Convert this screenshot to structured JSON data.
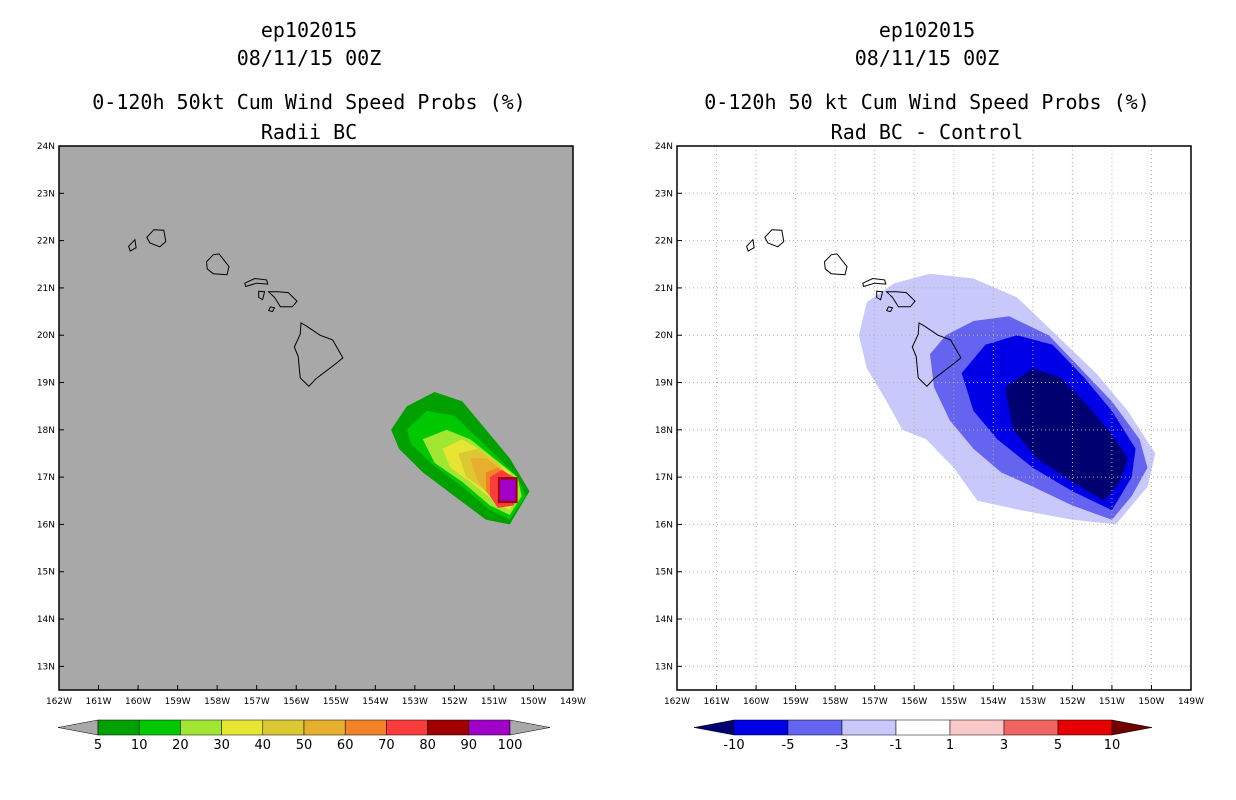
{
  "panels": [
    {
      "id": "left",
      "title_line1": "ep102015",
      "title_line2": "08/11/15 00Z",
      "title_line3": "0-120h 50kt Cum Wind Speed Probs (%)",
      "title_line4": "Radii BC",
      "background": "#a8a8a8",
      "grid": false
    },
    {
      "id": "right",
      "title_line1": "ep102015",
      "title_line2": "08/11/15 00Z",
      "title_line3": "0-120h 50 kt Cum Wind Speed Probs (%)",
      "title_line4": "Rad BC - Control",
      "background": "#ffffff",
      "grid": true
    }
  ],
  "chart_data": [
    {
      "type": "contour-map",
      "title": "0-120h 50kt Cum Wind Speed Probs (%) — Radii BC",
      "storm": "ep102015",
      "valid": "08/11/15 00Z",
      "lon_range": [
        -162,
        -149
      ],
      "lat_range": [
        12.5,
        24
      ],
      "x_ticks": [
        "162W",
        "161W",
        "160W",
        "159W",
        "158W",
        "157W",
        "156W",
        "155W",
        "154W",
        "153W",
        "152W",
        "151W",
        "150W",
        "149W"
      ],
      "y_ticks": [
        "13N",
        "14N",
        "15N",
        "16N",
        "17N",
        "18N",
        "19N",
        "20N",
        "21N",
        "22N",
        "23N",
        "24N"
      ],
      "colorbar": {
        "labels": [
          "5",
          "10",
          "20",
          "30",
          "40",
          "50",
          "60",
          "70",
          "80",
          "90",
          "100"
        ],
        "colors": [
          "#00a000",
          "#00c800",
          "#a0e632",
          "#e6e632",
          "#dcc832",
          "#e6af2d",
          "#f08228",
          "#fa3c3c",
          "#a00000",
          "#a000c8"
        ],
        "under_color": "#a8a8a8",
        "over_color": "#a8a8a8"
      },
      "contours": [
        {
          "level": 5,
          "color": "#00a000",
          "polygon": [
            [
              -153.6,
              18.0
            ],
            [
              -153.2,
              18.5
            ],
            [
              -152.5,
              18.8
            ],
            [
              -151.8,
              18.6
            ],
            [
              -151.2,
              18.0
            ],
            [
              -150.6,
              17.4
            ],
            [
              -150.1,
              16.7
            ],
            [
              -150.6,
              16.0
            ],
            [
              -151.2,
              16.1
            ],
            [
              -152.0,
              16.6
            ],
            [
              -152.8,
              17.1
            ],
            [
              -153.4,
              17.6
            ]
          ]
        },
        {
          "level": 10,
          "color": "#00c800",
          "polygon": [
            [
              -153.2,
              18.0
            ],
            [
              -152.7,
              18.4
            ],
            [
              -152.0,
              18.3
            ],
            [
              -151.5,
              17.9
            ],
            [
              -151.0,
              17.5
            ],
            [
              -150.4,
              17.0
            ],
            [
              -150.2,
              16.6
            ],
            [
              -150.6,
              16.1
            ],
            [
              -151.1,
              16.3
            ],
            [
              -151.8,
              16.8
            ],
            [
              -152.6,
              17.3
            ],
            [
              -153.1,
              17.7
            ]
          ]
        },
        {
          "level": 20,
          "color": "#a0e632",
          "polygon": [
            [
              -152.8,
              17.8
            ],
            [
              -152.2,
              18.0
            ],
            [
              -151.6,
              17.8
            ],
            [
              -151.0,
              17.4
            ],
            [
              -150.4,
              17.0
            ],
            [
              -150.3,
              16.6
            ],
            [
              -150.6,
              16.2
            ],
            [
              -151.1,
              16.4
            ],
            [
              -151.8,
              16.9
            ],
            [
              -152.5,
              17.3
            ]
          ]
        },
        {
          "level": 30,
          "color": "#e6e632",
          "polygon": [
            [
              -152.3,
              17.6
            ],
            [
              -151.8,
              17.8
            ],
            [
              -151.2,
              17.5
            ],
            [
              -150.6,
              17.1
            ],
            [
              -150.4,
              16.7
            ],
            [
              -150.6,
              16.3
            ],
            [
              -151.0,
              16.5
            ],
            [
              -151.6,
              16.9
            ],
            [
              -152.1,
              17.2
            ]
          ]
        },
        {
          "level": 40,
          "color": "#dcc832",
          "polygon": [
            [
              -151.9,
              17.5
            ],
            [
              -151.4,
              17.6
            ],
            [
              -150.9,
              17.3
            ],
            [
              -150.5,
              16.9
            ],
            [
              -150.5,
              16.5
            ],
            [
              -150.8,
              16.4
            ],
            [
              -151.2,
              16.7
            ],
            [
              -151.7,
              17.0
            ]
          ]
        },
        {
          "level": 50,
          "color": "#e6af2d",
          "polygon": [
            [
              -151.6,
              17.4
            ],
            [
              -151.2,
              17.4
            ],
            [
              -150.7,
              17.1
            ],
            [
              -150.5,
              16.7
            ],
            [
              -150.7,
              16.4
            ],
            [
              -151.0,
              16.5
            ],
            [
              -151.4,
              16.9
            ]
          ]
        },
        {
          "level": 60,
          "color": "#f08228",
          "polygon": [
            [
              -151.2,
              17.1
            ],
            [
              -150.9,
              17.2
            ],
            [
              -150.6,
              17.0
            ],
            [
              -150.5,
              16.7
            ],
            [
              -150.6,
              16.4
            ],
            [
              -150.9,
              16.4
            ],
            [
              -151.2,
              16.7
            ]
          ]
        },
        {
          "level": 70,
          "color": "#fa3c3c",
          "polygon": [
            [
              -151.1,
              17.0
            ],
            [
              -150.8,
              17.15
            ],
            [
              -150.5,
              17.0
            ],
            [
              -150.4,
              16.7
            ],
            [
              -150.5,
              16.4
            ],
            [
              -150.9,
              16.35
            ],
            [
              -151.1,
              16.6
            ]
          ]
        },
        {
          "level": 80,
          "color": "#a00000",
          "polygon": [
            [
              -150.9,
              17.0
            ],
            [
              -150.4,
              17.0
            ],
            [
              -150.4,
              16.45
            ],
            [
              -150.9,
              16.45
            ]
          ]
        },
        {
          "level": 90,
          "color": "#a000c8",
          "polygon": [
            [
              -150.85,
              16.95
            ],
            [
              -150.45,
              16.95
            ],
            [
              -150.45,
              16.5
            ],
            [
              -150.85,
              16.5
            ]
          ]
        }
      ]
    },
    {
      "type": "contour-map",
      "title": "0-120h 50 kt Cum Wind Speed Probs (%) — Rad BC - Control",
      "storm": "ep102015",
      "valid": "08/11/15 00Z",
      "lon_range": [
        -162,
        -149
      ],
      "lat_range": [
        12.5,
        24
      ],
      "x_ticks": [
        "162W",
        "161W",
        "160W",
        "159W",
        "158W",
        "157W",
        "156W",
        "155W",
        "154W",
        "153W",
        "152W",
        "151W",
        "150W",
        "149W"
      ],
      "y_ticks": [
        "13N",
        "14N",
        "15N",
        "16N",
        "17N",
        "18N",
        "19N",
        "20N",
        "21N",
        "22N",
        "23N",
        "24N"
      ],
      "colorbar": {
        "labels": [
          "-10",
          "-5",
          "-3",
          "-1",
          "1",
          "3",
          "5",
          "10"
        ],
        "colors": [
          "#0000e6",
          "#6464f0",
          "#c8c8fa",
          "#ffffff",
          "#fac8c8",
          "#f06464",
          "#e60000"
        ],
        "under_color": "#000070",
        "over_color": "#700000"
      },
      "contours": [
        {
          "level": -1,
          "color": "#c8c8fa",
          "polygon": [
            [
              -157.4,
              20.0
            ],
            [
              -157.2,
              20.7
            ],
            [
              -156.5,
              21.1
            ],
            [
              -155.6,
              21.3
            ],
            [
              -154.5,
              21.2
            ],
            [
              -153.4,
              20.8
            ],
            [
              -152.4,
              20.0
            ],
            [
              -151.4,
              19.2
            ],
            [
              -150.6,
              18.4
            ],
            [
              -149.9,
              17.5
            ],
            [
              -150.1,
              16.8
            ],
            [
              -150.9,
              16.0
            ],
            [
              -152.0,
              16.1
            ],
            [
              -153.3,
              16.3
            ],
            [
              -154.4,
              16.5
            ],
            [
              -155.0,
              17.2
            ],
            [
              -155.7,
              17.8
            ],
            [
              -156.3,
              18.0
            ],
            [
              -156.7,
              18.6
            ],
            [
              -157.2,
              19.3
            ]
          ]
        },
        {
          "level": -3,
          "color": "#6464f0",
          "polygon": [
            [
              -155.6,
              19.6
            ],
            [
              -155.2,
              20.0
            ],
            [
              -154.5,
              20.3
            ],
            [
              -153.6,
              20.4
            ],
            [
              -152.6,
              20.0
            ],
            [
              -151.8,
              19.3
            ],
            [
              -151.0,
              18.6
            ],
            [
              -150.3,
              17.8
            ],
            [
              -150.1,
              17.2
            ],
            [
              -150.5,
              16.6
            ],
            [
              -151.0,
              16.1
            ],
            [
              -152.0,
              16.4
            ],
            [
              -153.0,
              16.8
            ],
            [
              -153.8,
              17.1
            ],
            [
              -154.5,
              17.6
            ],
            [
              -155.1,
              18.2
            ],
            [
              -155.5,
              18.9
            ]
          ]
        },
        {
          "level": -5,
          "color": "#0000e6",
          "polygon": [
            [
              -154.8,
              19.2
            ],
            [
              -154.2,
              19.8
            ],
            [
              -153.4,
              20.0
            ],
            [
              -152.5,
              19.8
            ],
            [
              -151.7,
              19.1
            ],
            [
              -151.0,
              18.4
            ],
            [
              -150.4,
              17.6
            ],
            [
              -150.5,
              17.0
            ],
            [
              -151.0,
              16.3
            ],
            [
              -152.0,
              16.7
            ],
            [
              -153.0,
              17.2
            ],
            [
              -153.9,
              17.8
            ],
            [
              -154.5,
              18.4
            ]
          ]
        },
        {
          "level": -10,
          "color": "#000070",
          "polygon": [
            [
              -153.7,
              18.9
            ],
            [
              -153.0,
              19.3
            ],
            [
              -152.3,
              19.1
            ],
            [
              -151.6,
              18.5
            ],
            [
              -151.0,
              17.9
            ],
            [
              -150.6,
              17.4
            ],
            [
              -150.8,
              16.9
            ],
            [
              -151.2,
              16.5
            ],
            [
              -152.0,
              16.9
            ],
            [
              -152.9,
              17.4
            ],
            [
              -153.5,
              18.0
            ]
          ]
        }
      ]
    }
  ]
}
